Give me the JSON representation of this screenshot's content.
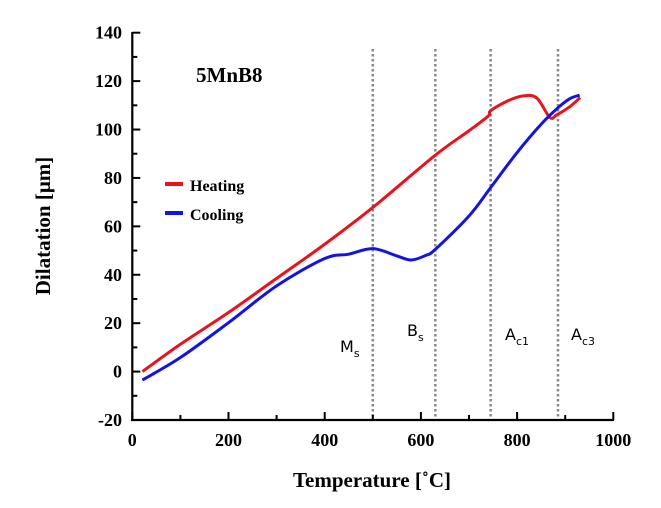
{
  "chart_data": {
    "type": "line",
    "title": "",
    "annotation_title": "5MnB8",
    "xlabel": "Temperature [˚C]",
    "ylabel": "Dilatation [μm]",
    "xlim": [
      0,
      1000
    ],
    "ylim": [
      -20,
      140
    ],
    "xticks": [
      0,
      200,
      400,
      600,
      800,
      1000
    ],
    "yticks": [
      -20,
      0,
      20,
      40,
      60,
      80,
      100,
      120,
      140
    ],
    "grid": false,
    "legend": "left-middle",
    "series": [
      {
        "name": "Heating",
        "color": "#e8141c",
        "x": [
          21,
          100,
          200,
          300,
          400,
          500,
          630,
          700,
          740,
          745,
          780,
          813,
          841,
          868,
          882,
          910,
          931
        ],
        "y": [
          0,
          11.3,
          24.4,
          38.5,
          52.6,
          67.8,
          89.4,
          99.5,
          105.6,
          107.8,
          111.8,
          113.9,
          113,
          105,
          106,
          109.5,
          113.2
        ]
      },
      {
        "name": "Cooling",
        "color": "#1414e0",
        "x": [
          21,
          100,
          200,
          300,
          400,
          450,
          500,
          550,
          580,
          610,
          630,
          700,
          745,
          800,
          850,
          885,
          910,
          930
        ],
        "y": [
          -3.5,
          5.8,
          20.2,
          35.4,
          46.7,
          48.5,
          50.8,
          47.8,
          46.1,
          48,
          50.5,
          64.3,
          76,
          90.5,
          102.2,
          109,
          112.8,
          114.2
        ]
      }
    ],
    "reference_lines": [
      {
        "x": 500,
        "label": "M",
        "sub": "s"
      },
      {
        "x": 630,
        "label": "B",
        "sub": "s"
      },
      {
        "x": 745,
        "label": "A",
        "sub": "c1"
      },
      {
        "x": 885,
        "label": "A",
        "sub": "c3"
      }
    ]
  }
}
